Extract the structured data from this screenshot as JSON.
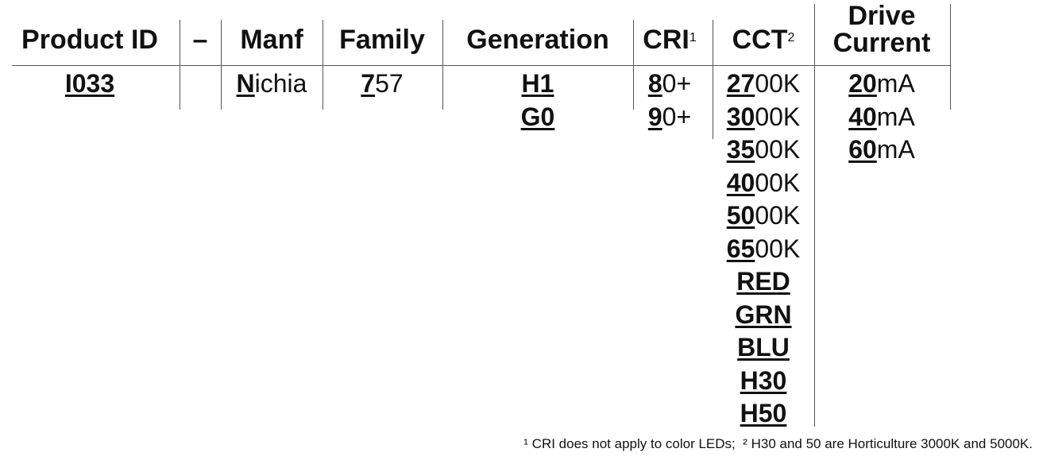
{
  "columns": [
    {
      "header": "Product ID",
      "options": [
        {
          "code": "I033"
        }
      ]
    },
    {
      "header": "–"
    },
    {
      "header": "Manf",
      "options": [
        {
          "code": "N",
          "rest": "ichia"
        }
      ]
    },
    {
      "header": "Family",
      "options": [
        {
          "code": "7",
          "rest": "57"
        }
      ]
    },
    {
      "header": "Generation",
      "options": [
        {
          "code": "H1"
        },
        {
          "code": "G0"
        }
      ]
    },
    {
      "header": "CRI",
      "sup": "1",
      "options": [
        {
          "code": "8",
          "rest": "0+"
        },
        {
          "code": "9",
          "rest": "0+"
        }
      ]
    },
    {
      "header": "CCT",
      "sup": "2",
      "options": [
        {
          "code": "27",
          "rest": "00K"
        },
        {
          "code": "30",
          "rest": "00K"
        },
        {
          "code": "35",
          "rest": "00K"
        },
        {
          "code": "40",
          "rest": "00K"
        },
        {
          "code": "50",
          "rest": "00K"
        },
        {
          "code": "65",
          "rest": "00K"
        },
        {
          "code": "RED"
        },
        {
          "code": "GRN"
        },
        {
          "code": "BLU"
        },
        {
          "code": "H30"
        },
        {
          "code": "H50"
        }
      ]
    },
    {
      "header_lines": [
        "Drive",
        "Current"
      ],
      "options": [
        {
          "code": "20",
          "rest": "mA"
        },
        {
          "code": "40",
          "rest": "mA"
        },
        {
          "code": "60",
          "rest": "mA"
        }
      ]
    }
  ],
  "footnote": "¹ CRI does not apply to color LEDs;  ² H30 and 50 are Horticulture 3000K and 5000K."
}
